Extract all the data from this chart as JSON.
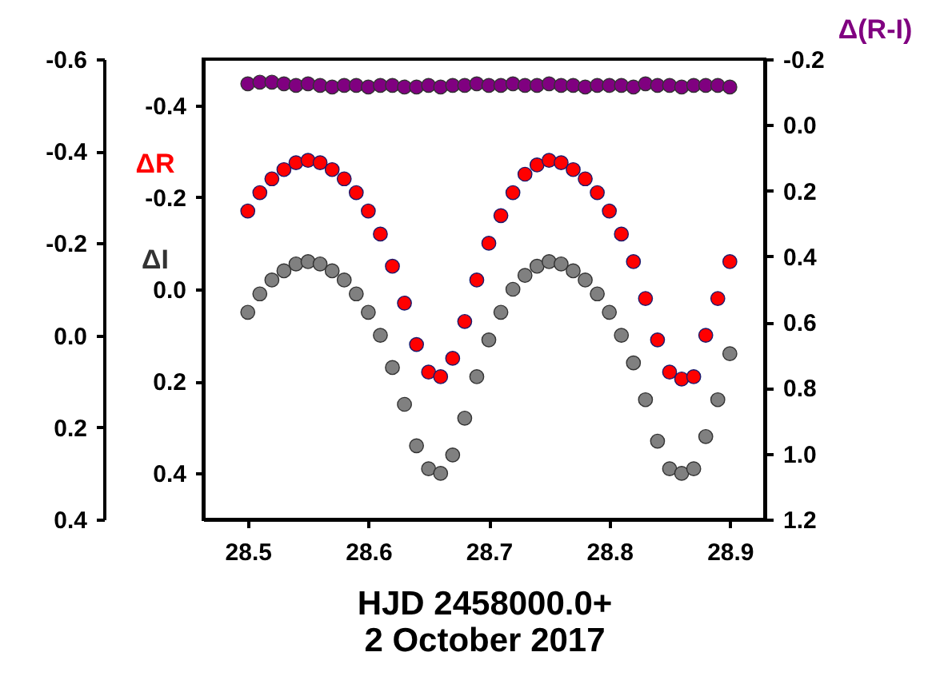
{
  "chart_data": {
    "type": "scatter",
    "xlabel": "HJD 2458000.0+\n2 October 2017",
    "x": [
      28.5,
      28.51,
      28.52,
      28.53,
      28.54,
      28.55,
      28.56,
      28.57,
      28.58,
      28.59,
      28.6,
      28.61,
      28.62,
      28.63,
      28.64,
      28.65,
      28.66,
      28.67,
      28.68,
      28.69,
      28.7,
      28.71,
      28.72,
      28.73,
      28.74,
      28.75,
      28.76,
      28.77,
      28.78,
      28.79,
      28.8,
      28.81,
      28.82,
      28.83,
      28.84,
      28.85,
      28.86,
      28.87,
      28.88,
      28.89,
      28.9
    ],
    "series": [
      {
        "name": "ΔR",
        "color": "#ff0000",
        "axis": "y",
        "values": [
          -0.17,
          -0.21,
          -0.24,
          -0.26,
          -0.275,
          -0.28,
          -0.275,
          -0.26,
          -0.24,
          -0.21,
          -0.17,
          -0.12,
          -0.05,
          0.03,
          0.12,
          0.18,
          0.19,
          0.15,
          0.07,
          -0.02,
          -0.1,
          -0.16,
          -0.21,
          -0.25,
          -0.27,
          -0.28,
          -0.275,
          -0.26,
          -0.24,
          -0.21,
          -0.17,
          -0.12,
          -0.06,
          0.02,
          0.11,
          0.18,
          0.195,
          0.19,
          0.1,
          0.02,
          -0.06
        ]
      },
      {
        "name": "ΔI",
        "color": "#808080",
        "axis": "y3",
        "values": [
          -0.05,
          -0.09,
          -0.12,
          -0.14,
          -0.155,
          -0.16,
          -0.155,
          -0.14,
          -0.12,
          -0.09,
          -0.05,
          0.0,
          0.07,
          0.15,
          0.24,
          0.29,
          0.3,
          0.26,
          0.18,
          0.09,
          0.01,
          -0.05,
          -0.1,
          -0.13,
          -0.15,
          -0.16,
          -0.155,
          -0.14,
          -0.12,
          -0.09,
          -0.05,
          0.0,
          0.06,
          0.14,
          0.23,
          0.29,
          0.3,
          0.29,
          0.22,
          0.14,
          0.04
        ]
      },
      {
        "name": "Δ(R-I)",
        "color": "#800080",
        "axis": "y2",
        "values": [
          -0.125,
          -0.13,
          -0.13,
          -0.125,
          -0.12,
          -0.125,
          -0.12,
          -0.115,
          -0.12,
          -0.12,
          -0.115,
          -0.12,
          -0.12,
          -0.115,
          -0.115,
          -0.12,
          -0.115,
          -0.12,
          -0.12,
          -0.125,
          -0.12,
          -0.12,
          -0.125,
          -0.12,
          -0.12,
          -0.125,
          -0.12,
          -0.12,
          -0.115,
          -0.12,
          -0.12,
          -0.12,
          -0.115,
          -0.125,
          -0.12,
          -0.12,
          -0.115,
          -0.12,
          -0.12,
          -0.12,
          -0.115
        ]
      }
    ],
    "xlim": [
      28.463,
      28.929
    ],
    "xticks": [
      28.5,
      28.6,
      28.7,
      28.8,
      28.9
    ],
    "ylim": [
      0.5,
      -0.5
    ],
    "yticks": [
      -0.4,
      -0.2,
      {
        "value": 0,
        "label": "0.0"
      },
      0.2,
      0.4
    ],
    "y3lim": [
      0.4,
      -0.6
    ],
    "y3ticks": [
      -0.6,
      -0.4,
      -0.2,
      {
        "value": 0,
        "label": "0.0"
      },
      0.2,
      0.4
    ],
    "y2lim": [
      1.2,
      -0.2
    ],
    "y2ticks": [
      -0.2,
      {
        "value": 0,
        "label": "0.0"
      },
      0.2,
      0.4,
      0.6,
      0.8,
      {
        "value": 1,
        "label": "1.0"
      },
      1.2
    ],
    "marker": "circle",
    "grid": false
  }
}
